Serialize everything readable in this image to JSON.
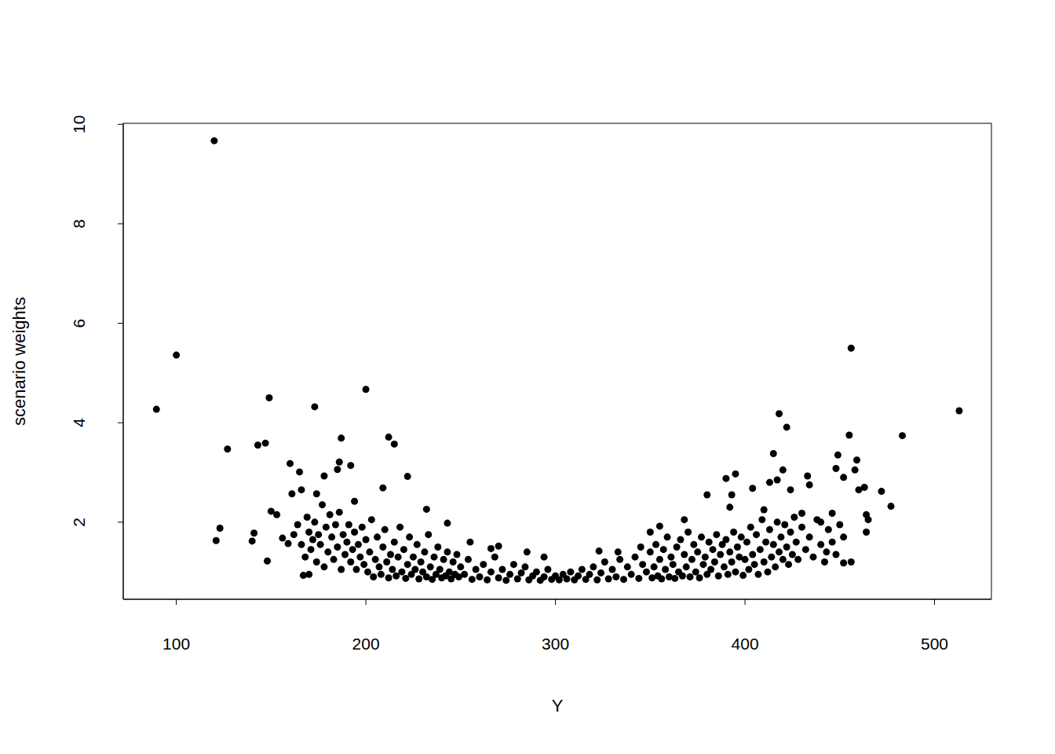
{
  "chart_data": {
    "type": "scatter",
    "x_label": "Y",
    "y_label": "scenario weights",
    "color": "#000000",
    "marker": "circle",
    "grid": false,
    "xlim": [
      72,
      530
    ],
    "xticks": [
      100,
      200,
      300,
      400,
      500
    ],
    "ylim": [
      0.45,
      10.02
    ],
    "yticks": [
      2,
      4,
      6,
      8,
      10
    ],
    "x": [
      89.5,
      100,
      120,
      121,
      123,
      127,
      140,
      141,
      143,
      147,
      149,
      148,
      150,
      153,
      156,
      159,
      160,
      161,
      165,
      166,
      167,
      170,
      173,
      174,
      178,
      185,
      186,
      187,
      192,
      194,
      200,
      209,
      212,
      215,
      222,
      232,
      243,
      255,
      266,
      270,
      285,
      294,
      323,
      333,
      345,
      350,
      355,
      368,
      380,
      390,
      392,
      393,
      395,
      404,
      410,
      413,
      415,
      417,
      418,
      420,
      422,
      424,
      430,
      433,
      434,
      440,
      443,
      446,
      448,
      449,
      452,
      452,
      455,
      456,
      456,
      458,
      459,
      460,
      463,
      464,
      464,
      465,
      472,
      477,
      483,
      513,
      162,
      164,
      166,
      168,
      169,
      170,
      171,
      172,
      173,
      174,
      175,
      176,
      177,
      178,
      179,
      180,
      181,
      182,
      183,
      184,
      185,
      186,
      187,
      188,
      189,
      190,
      191,
      192,
      193,
      194,
      195,
      196,
      197,
      198,
      199,
      200,
      201,
      202,
      203,
      204,
      205,
      206,
      207,
      208,
      209,
      210,
      211,
      212,
      213,
      214,
      215,
      216,
      217,
      218,
      219,
      220,
      221,
      222,
      223,
      224,
      225,
      226,
      227,
      228,
      229,
      230,
      231,
      232,
      233,
      234,
      235,
      236,
      237,
      238,
      239,
      240,
      241,
      242,
      243,
      244,
      245,
      246,
      247,
      248,
      249,
      250,
      252,
      254,
      256,
      258,
      260,
      262,
      264,
      266,
      268,
      270,
      272,
      274,
      276,
      278,
      280,
      282,
      284,
      286,
      288,
      290,
      292,
      294,
      296,
      298,
      300,
      302,
      304,
      306,
      308,
      310,
      312,
      314,
      316,
      318,
      320,
      322,
      324,
      326,
      328,
      330,
      332,
      334,
      336,
      338,
      340,
      342,
      344,
      346,
      348,
      350,
      351,
      352,
      353,
      354,
      355,
      356,
      357,
      358,
      359,
      360,
      361,
      362,
      363,
      364,
      365,
      366,
      367,
      368,
      369,
      370,
      371,
      372,
      373,
      374,
      375,
      376,
      377,
      378,
      379,
      380,
      381,
      382,
      383,
      384,
      385,
      386,
      387,
      388,
      389,
      390,
      391,
      392,
      393,
      394,
      395,
      396,
      397,
      398,
      399,
      400,
      401,
      402,
      403,
      404,
      405,
      406,
      407,
      408,
      409,
      410,
      411,
      412,
      413,
      414,
      415,
      416,
      417,
      418,
      419,
      420,
      421,
      422,
      423,
      424,
      425,
      426,
      427,
      428,
      430,
      432,
      434,
      436,
      438,
      440,
      442,
      444,
      446,
      448,
      450,
      452
    ],
    "values": [
      4.27,
      5.36,
      9.67,
      1.63,
      1.88,
      3.47,
      1.62,
      1.78,
      3.55,
      3.59,
      4.5,
      1.22,
      2.22,
      2.15,
      1.68,
      1.57,
      3.18,
      2.57,
      3.01,
      2.65,
      0.93,
      0.95,
      4.32,
      2.57,
      2.93,
      3.06,
      3.21,
      3.69,
      3.14,
      2.42,
      4.67,
      2.69,
      3.71,
      3.57,
      2.92,
      2.26,
      1.98,
      1.6,
      1.47,
      1.52,
      1.4,
      1.3,
      1.42,
      1.4,
      1.5,
      1.8,
      1.92,
      2.05,
      2.55,
      2.88,
      2.3,
      2.55,
      2.97,
      2.68,
      2.25,
      2.8,
      3.38,
      2.85,
      4.18,
      3.05,
      3.91,
      2.65,
      2.18,
      2.93,
      2.75,
      2.0,
      1.4,
      2.18,
      3.08,
      3.35,
      2.9,
      1.18,
      3.75,
      5.5,
      1.2,
      3.05,
      3.25,
      2.65,
      2.7,
      2.15,
      1.8,
      2.05,
      2.62,
      2.32,
      3.74,
      4.24,
      1.75,
      1.95,
      1.55,
      1.3,
      2.1,
      1.8,
      1.45,
      1.65,
      2.0,
      1.2,
      1.75,
      1.55,
      2.35,
      1.1,
      1.9,
      1.4,
      2.15,
      1.7,
      1.25,
      1.95,
      1.5,
      2.2,
      1.05,
      1.75,
      1.35,
      1.6,
      1.95,
      1.2,
      1.45,
      1.8,
      1.05,
      1.55,
      1.3,
      1.9,
      1.15,
      1.65,
      1.0,
      1.4,
      2.05,
      0.9,
      1.25,
      1.7,
      1.1,
      0.95,
      1.5,
      1.85,
      1.2,
      0.88,
      1.35,
      1.05,
      1.6,
      0.92,
      1.3,
      1.9,
      1.0,
      1.45,
      0.87,
      1.15,
      1.7,
      0.95,
      1.3,
      1.05,
      1.55,
      0.86,
      1.2,
      1.0,
      1.4,
      0.9,
      1.75,
      1.1,
      0.85,
      1.3,
      0.95,
      1.5,
      1.05,
      0.88,
      1.25,
      0.92,
      1.4,
      1.0,
      0.86,
      1.2,
      0.95,
      1.35,
      0.9,
      1.1,
      0.95,
      1.25,
      0.85,
      1.05,
      0.9,
      1.15,
      0.84,
      1.0,
      1.3,
      0.88,
      1.05,
      0.83,
      0.95,
      1.15,
      0.86,
      0.98,
      1.1,
      0.84,
      0.92,
      1.0,
      0.83,
      0.9,
      1.05,
      0.85,
      0.92,
      0.84,
      0.95,
      0.86,
      1.0,
      0.84,
      0.92,
      1.05,
      0.85,
      0.95,
      1.1,
      0.84,
      0.98,
      1.2,
      0.86,
      1.05,
      0.9,
      1.25,
      0.85,
      1.1,
      0.95,
      1.3,
      0.87,
      1.15,
      1.0,
      1.4,
      0.88,
      1.1,
      1.55,
      0.92,
      1.25,
      0.86,
      1.45,
      1.05,
      1.7,
      0.9,
      1.3,
      1.15,
      0.87,
      1.5,
      1.0,
      1.65,
      0.92,
      1.35,
      1.1,
      1.8,
      0.9,
      1.25,
      1.55,
      1.0,
      1.4,
      0.88,
      1.7,
      1.15,
      1.3,
      0.95,
      1.6,
      1.05,
      1.45,
      1.2,
      1.75,
      0.92,
      1.35,
      1.55,
      1.1,
      1.65,
      0.95,
      1.4,
      1.2,
      1.8,
      1.0,
      1.5,
      1.3,
      1.7,
      0.93,
      1.25,
      1.6,
      1.05,
      1.9,
      1.35,
      1.15,
      1.75,
      0.95,
      1.45,
      2.05,
      1.2,
      1.6,
      1.0,
      1.85,
      1.3,
      1.55,
      1.1,
      2.0,
      1.4,
      1.7,
      1.25,
      1.95,
      1.5,
      1.15,
      1.8,
      1.35,
      2.1,
      1.6,
      1.25,
      1.9,
      1.45,
      1.7,
      1.3,
      2.05,
      1.55,
      1.2,
      1.85,
      1.6,
      1.35,
      1.95,
      1.7
    ]
  }
}
